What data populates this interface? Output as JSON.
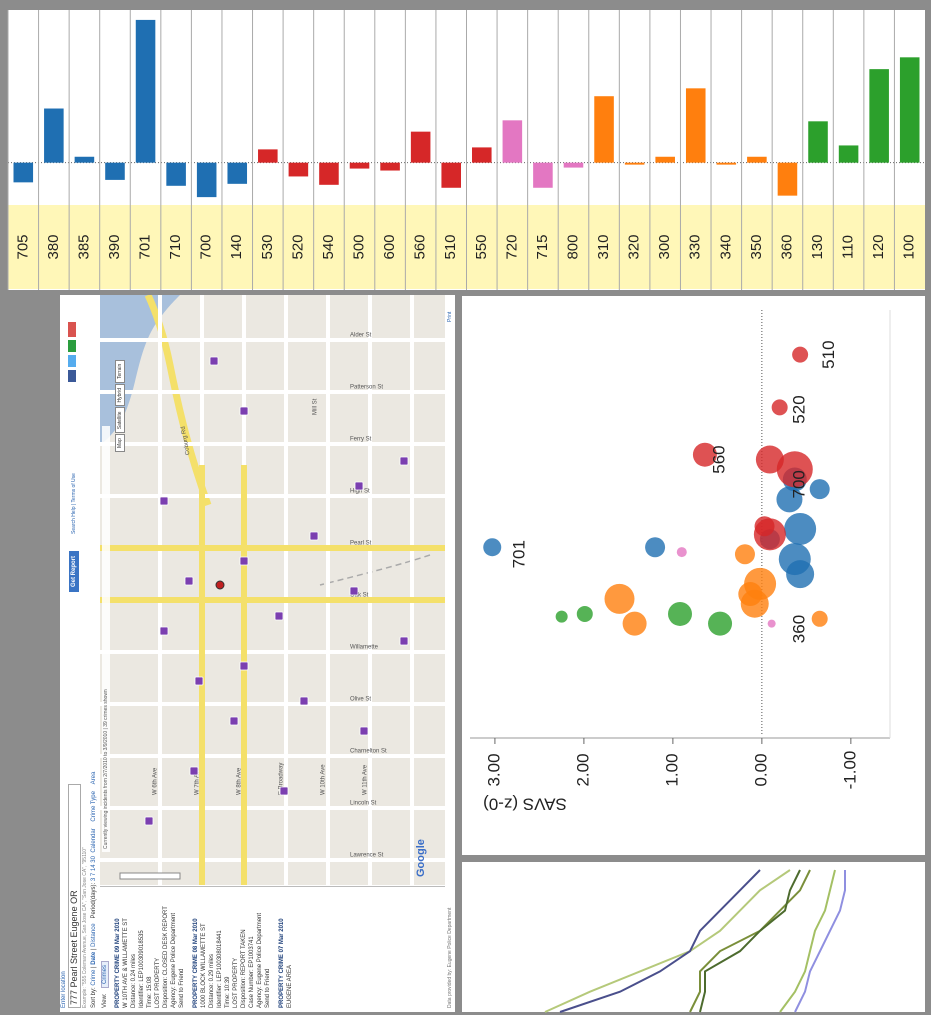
{
  "chart_data": [
    {
      "type": "bar",
      "categories": [
        "705",
        "380",
        "385",
        "390",
        "701",
        "710",
        "700",
        "140",
        "530",
        "520",
        "540",
        "500",
        "600",
        "560",
        "510",
        "550",
        "720",
        "715",
        "800",
        "310",
        "320",
        "300",
        "330",
        "340",
        "350",
        "360",
        "130",
        "110",
        "120",
        "100"
      ],
      "values": [
        -0.4,
        1.1,
        0.12,
        -0.35,
        2.9,
        -0.47,
        -0.7,
        -0.43,
        0.27,
        -0.28,
        -0.45,
        -0.12,
        -0.16,
        0.63,
        -0.51,
        0.31,
        0.86,
        -0.51,
        -0.1,
        1.35,
        -0.04,
        0.12,
        1.51,
        -0.04,
        0.12,
        -0.67,
        0.84,
        0.35,
        1.9,
        2.14
      ],
      "colors": [
        "#1f6fb2",
        "#1f6fb2",
        "#1f6fb2",
        "#1f6fb2",
        "#1f6fb2",
        "#1f6fb2",
        "#1f6fb2",
        "#1f6fb2",
        "#d62728",
        "#d62728",
        "#d62728",
        "#d62728",
        "#d62728",
        "#d62728",
        "#d62728",
        "#d62728",
        "#e377c2",
        "#e377c2",
        "#e377c2",
        "#ff7f0e",
        "#ff7f0e",
        "#ff7f0e",
        "#ff7f0e",
        "#ff7f0e",
        "#ff7f0e",
        "#ff7f0e",
        "#2ca02c",
        "#2ca02c",
        "#2ca02c",
        "#2ca02c"
      ],
      "ylim": [
        -0.86,
        3.02
      ]
    },
    {
      "type": "scatter",
      "ylabel": "SAVS (z-0)",
      "xlim": [
        2.1,
        10
      ],
      "ylim": [
        -1.44,
        3.28
      ],
      "yticks": [
        {
          "value": 3,
          "label": "3.00"
        },
        {
          "value": 2,
          "label": "2.00"
        },
        {
          "value": 1,
          "label": "1.00"
        },
        {
          "value": 0,
          "label": "0.00"
        },
        {
          "value": -1,
          "label": "-1.00"
        }
      ],
      "reference_line": 0,
      "series": [
        {
          "color": "#1f6fb2",
          "x": [
            5.59,
            5.59,
            6.85,
            6.48,
            5.93,
            5.37,
            5.09,
            6.67,
            5.74
          ],
          "values": [
            3.03,
            1.2,
            -0.37,
            -0.31,
            -0.43,
            -0.37,
            -0.43,
            -0.65,
            -0.09
          ],
          "sizes": [
            9,
            10,
            12,
            13,
            16,
            16,
            14,
            10,
            10
          ]
        },
        {
          "color": "#d62728",
          "x": [
            7.22,
            7.04,
            5.83,
            7.31,
            8.19,
            9.17,
            5.98
          ],
          "values": [
            -0.09,
            -0.37,
            -0.09,
            0.64,
            -0.2,
            -0.43,
            -0.03
          ],
          "sizes": [
            14,
            18,
            16,
            12,
            8,
            8,
            10
          ]
        },
        {
          "color": "#ff7f0e",
          "x": [
            4.63,
            4.17,
            5.46,
            4.91,
            4.54,
            4.72,
            4.26
          ],
          "values": [
            1.6,
            1.43,
            0.19,
            0.02,
            0.08,
            0.13,
            -0.65
          ],
          "sizes": [
            15,
            12,
            10,
            16,
            14,
            12,
            8
          ]
        },
        {
          "color": "#2ca02c",
          "x": [
            4.3,
            4.35,
            4.35,
            4.17
          ],
          "values": [
            2.25,
            1.99,
            0.92,
            0.47
          ],
          "sizes": [
            6,
            8,
            12,
            12
          ]
        },
        {
          "color": "#e377c2",
          "x": [
            5.5,
            4.17
          ],
          "values": [
            0.9,
            -0.11
          ],
          "sizes": [
            5,
            4
          ]
        }
      ],
      "annotations": [
        {
          "text": "701",
          "x": 5.46,
          "y": 2.72
        },
        {
          "text": "560",
          "x": 7.22,
          "y": 0.47
        },
        {
          "text": "520",
          "x": 8.15,
          "y": -0.43
        },
        {
          "text": "510",
          "x": 9.17,
          "y": -0.76
        },
        {
          "text": "700",
          "x": 6.76,
          "y": -0.43
        },
        {
          "text": "360",
          "x": 4.07,
          "y": -0.43
        }
      ]
    },
    {
      "type": "line",
      "x": [
        0,
        1,
        2,
        3,
        4,
        5,
        6,
        7
      ],
      "xlim": [
        0,
        7
      ],
      "ylim": [
        0,
        455
      ],
      "series": [
        {
          "color": "#b5c97a",
          "values": [
            75,
            120,
            170,
            220,
            250,
            270,
            290,
            320
          ]
        },
        {
          "color": "#4a4f8c",
          "values": [
            90,
            150,
            190,
            220,
            230,
            250,
            270,
            290
          ]
        },
        {
          "color": "#7a8f3a",
          "values": [
            220,
            230,
            230,
            250,
            290,
            310,
            330,
            340
          ]
        },
        {
          "color": "#4d6b2e",
          "values": [
            230,
            235,
            235,
            270,
            290,
            315,
            320,
            330
          ]
        },
        {
          "color": "#a4c064",
          "values": [
            310,
            325,
            335,
            340,
            345,
            355,
            360,
            365
          ]
        },
        {
          "color": "#8f8fe0",
          "values": [
            325,
            335,
            340,
            350,
            360,
            370,
            375,
            375
          ]
        }
      ]
    }
  ],
  "map_page": {
    "location_label": "Enter location",
    "location": "777 Pearl Street Eugene OR",
    "example": "Example: \"555 Coleman Avenue, San Jose CA\", \"San Jose CA\", \"95110\"",
    "get_report": "Get Report",
    "search_help": "Search Help | Terms of Use",
    "sort_by": "Sort by:",
    "sort_options": [
      "Crime",
      "Date",
      "Distance"
    ],
    "period_label": "Period(days):",
    "periods": [
      "3",
      "7",
      "14",
      "30"
    ],
    "calendar": "Calendar",
    "crime_type": "Crime Type",
    "area": "Area",
    "view_label": "View:",
    "tab": "Crimes",
    "incidents": [
      {
        "title": "PROPERTY CRIME 09 Mar 2010",
        "lines": [
          "W 10TH AVE & WILLAMETTE ST",
          "Distance: 0.24 miles",
          "Identifier: LEP100309018535",
          "Time: 15:08",
          "LOST PROPERTY",
          "Disposition: CLOSED DESK REPORT",
          "Agency: Eugene Police Department",
          "Send to Friend"
        ]
      },
      {
        "title": "PROPERTY CRIME 08 Mar 2010",
        "lines": [
          "1000 BLOCK WILLAMETTE ST",
          "Distance: 0.29 miles",
          "Identifier: LEP100308018441",
          "Time: 10:39",
          "LOST PROPERTY",
          "Disposition: REPORT TAKEN",
          "Case Number: EP1003741",
          "Agency: Eugene Police Department",
          "Send to Friend"
        ]
      },
      {
        "title": "PROPERTY CRIME 07 Mar 2010",
        "lines": [
          "EUGENE AREA"
        ]
      }
    ],
    "status": "Currently viewing incidents from 2/7/2010 to 3/9/2010 | 39 crimes shown",
    "map_types": [
      "Map",
      "Satellite",
      "Hybrid",
      "Terrain"
    ],
    "streets": [
      "Lawrence St",
      "Lincoln St",
      "Charnelton St",
      "Olive St",
      "Willamette",
      "Oak St",
      "Pearl St",
      "High St",
      "Ferry St",
      "Patterson St",
      "Alder St",
      "W 6th Ave",
      "W 7th Ave",
      "W 8th Ave",
      "E Broadway",
      "W 10th Ave",
      "W 11th Ave",
      "Coburg Rd",
      "Mill St"
    ],
    "logo": "Google",
    "footer": "Data provided by: Eugene Police Department",
    "print": "Print"
  }
}
